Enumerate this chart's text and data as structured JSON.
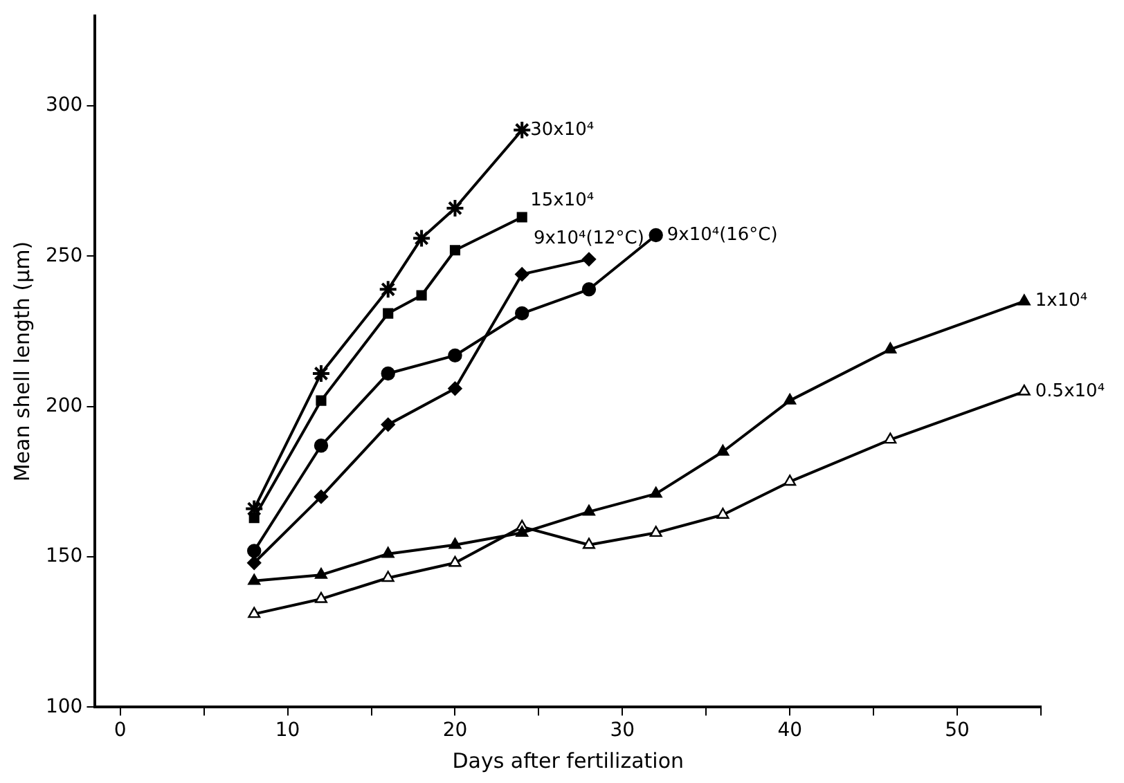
{
  "chart_data": {
    "type": "line",
    "xlabel": "Days after fertilization",
    "ylabel": "Mean shell length (µm)",
    "xlim": [
      -1.5,
      55
    ],
    "xticks": [
      0,
      {
        "value": 5,
        "label": null
      },
      10,
      {
        "value": 15,
        "label": null
      },
      20,
      {
        "value": 25,
        "label": null
      },
      30,
      {
        "value": 35,
        "label": null
      },
      40,
      {
        "value": 45,
        "label": null
      },
      50,
      {
        "value": 55,
        "label": null
      }
    ],
    "ylim": [
      100,
      330
    ],
    "yticks": [
      100,
      150,
      200,
      250,
      300
    ],
    "grid": false,
    "legend": false,
    "line_style": "solid",
    "series": [
      {
        "name": "30x10⁴",
        "color": "#000000",
        "marker": "cross",
        "x": [
          8,
          12,
          16,
          18,
          20,
          24
        ],
        "values": [
          166,
          211,
          239,
          256,
          266,
          292
        ]
      },
      {
        "name": "15x10⁴",
        "color": "#000000",
        "marker": "square",
        "x": [
          8,
          12,
          16,
          18,
          20,
          24
        ],
        "values": [
          163,
          202,
          231,
          237,
          252,
          263
        ]
      },
      {
        "name": "9x10⁴(12°C)",
        "color": "#000000",
        "marker": "diamond",
        "x": [
          8,
          12,
          16,
          20,
          24,
          28
        ],
        "values": [
          148,
          170,
          194,
          206,
          244,
          249
        ]
      },
      {
        "name": "9x10⁴(16°C)",
        "color": "#000000",
        "marker": "circle",
        "x": [
          8,
          12,
          16,
          20,
          24,
          28,
          32
        ],
        "values": [
          152,
          187,
          211,
          217,
          231,
          239,
          257
        ]
      },
      {
        "name": "1x10⁴",
        "color": "#000000",
        "marker": "triangle",
        "x": [
          8,
          12,
          16,
          20,
          24,
          28,
          32,
          36,
          40,
          46,
          54
        ],
        "values": [
          142,
          144,
          151,
          154,
          158,
          165,
          171,
          185,
          202,
          219,
          235
        ]
      },
      {
        "name": "0.5x10⁴",
        "color": "#000000",
        "marker": "triangle",
        "x": [
          8,
          12,
          16,
          20,
          24,
          28,
          32,
          36,
          40,
          46,
          54
        ],
        "values": [
          131,
          136,
          143,
          148,
          160,
          154,
          158,
          164,
          175,
          189,
          205
        ]
      }
    ]
  }
}
